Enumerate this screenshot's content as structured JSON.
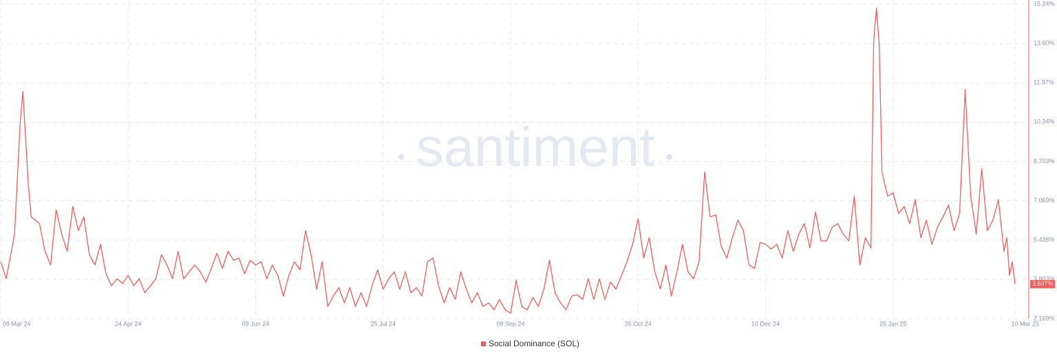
{
  "chart_data": {
    "type": "line",
    "watermark": "santiment",
    "x": [
      "09 Mar 24",
      "11 Mar 24",
      "14 Mar 24",
      "16 Mar 24",
      "17 Mar 24",
      "19 Mar 24",
      "20 Mar 24",
      "23 Mar 24",
      "25 Mar 24",
      "27 Mar 24",
      "29 Mar 24",
      "31 Mar 24",
      "02 Apr 24",
      "04 Apr 24",
      "06 Apr 24",
      "08 Apr 24",
      "10 Apr 24",
      "12 Apr 24",
      "14 Apr 24",
      "16 Apr 24",
      "18 Apr 24",
      "20 Apr 24",
      "22 Apr 24",
      "24 Apr 24",
      "26 Apr 24",
      "28 Apr 24",
      "30 Apr 24",
      "02 May 24",
      "04 May 24",
      "06 May 24",
      "08 May 24",
      "10 May 24",
      "12 May 24",
      "14 May 24",
      "16 May 24",
      "18 May 24",
      "20 May 24",
      "22 May 24",
      "24 May 24",
      "26 May 24",
      "28 May 24",
      "30 May 24",
      "01 Jun 24",
      "03 Jun 24",
      "05 Jun 24",
      "07 Jun 24",
      "09 Jun 24",
      "11 Jun 24",
      "13 Jun 24",
      "15 Jun 24",
      "17 Jun 24",
      "19 Jun 24",
      "21 Jun 24",
      "23 Jun 24",
      "25 Jun 24",
      "27 Jun 24",
      "29 Jun 24",
      "01 Jul 24",
      "03 Jul 24",
      "05 Jul 24",
      "07 Jul 24",
      "09 Jul 24",
      "11 Jul 24",
      "13 Jul 24",
      "15 Jul 24",
      "17 Jul 24",
      "19 Jul 24",
      "21 Jul 24",
      "23 Jul 24",
      "25 Jul 24",
      "27 Jul 24",
      "29 Jul 24",
      "31 Jul 24",
      "02 Aug 24",
      "04 Aug 24",
      "06 Aug 24",
      "08 Aug 24",
      "10 Aug 24",
      "12 Aug 24",
      "14 Aug 24",
      "16 Aug 24",
      "18 Aug 24",
      "20 Aug 24",
      "22 Aug 24",
      "24 Aug 24",
      "26 Aug 24",
      "28 Aug 24",
      "30 Aug 24",
      "01 Sep 24",
      "03 Sep 24",
      "05 Sep 24",
      "07 Sep 24",
      "09 Sep 24",
      "11 Sep 24",
      "13 Sep 24",
      "15 Sep 24",
      "17 Sep 24",
      "19 Sep 24",
      "21 Sep 24",
      "23 Sep 24",
      "25 Sep 24",
      "27 Sep 24",
      "29 Sep 24",
      "01 Oct 24",
      "03 Oct 24",
      "05 Oct 24",
      "07 Oct 24",
      "09 Oct 24",
      "11 Oct 24",
      "13 Oct 24",
      "15 Oct 24",
      "17 Oct 24",
      "19 Oct 24",
      "21 Oct 24",
      "23 Oct 24",
      "25 Oct 24",
      "27 Oct 24",
      "29 Oct 24",
      "31 Oct 24",
      "02 Nov 24",
      "04 Nov 24",
      "06 Nov 24",
      "08 Nov 24",
      "10 Nov 24",
      "12 Nov 24",
      "14 Nov 24",
      "16 Nov 24",
      "18 Nov 24",
      "20 Nov 24",
      "22 Nov 24",
      "24 Nov 24",
      "26 Nov 24",
      "28 Nov 24",
      "30 Nov 24",
      "02 Dec 24",
      "04 Dec 24",
      "06 Dec 24",
      "08 Dec 24",
      "10 Dec 24",
      "12 Dec 24",
      "14 Dec 24",
      "16 Dec 24",
      "18 Dec 24",
      "20 Dec 24",
      "22 Dec 24",
      "24 Dec 24",
      "26 Dec 24",
      "28 Dec 24",
      "30 Dec 24",
      "01 Jan 25",
      "03 Jan 25",
      "05 Jan 25",
      "07 Jan 25",
      "09 Jan 25",
      "11 Jan 25",
      "13 Jan 25",
      "15 Jan 25",
      "17 Jan 25",
      "18 Jan 25",
      "19 Jan 25",
      "20 Jan 25",
      "21 Jan 25",
      "23 Jan 25",
      "25 Jan 25",
      "27 Jan 25",
      "29 Jan 25",
      "31 Jan 25",
      "02 Feb 25",
      "04 Feb 25",
      "06 Feb 25",
      "08 Feb 25",
      "10 Feb 25",
      "12 Feb 25",
      "14 Feb 25",
      "16 Feb 25",
      "18 Feb 25",
      "20 Feb 25",
      "22 Feb 25",
      "24 Feb 25",
      "26 Feb 25",
      "28 Feb 25",
      "02 Mar 25",
      "04 Mar 25",
      "06 Mar 25",
      "07 Mar 25",
      "08 Mar 25",
      "09 Mar 25",
      "10 Mar 25"
    ],
    "series": [
      {
        "name": "Social Dominance (SOL)",
        "color": "#f45b5b",
        "values": [
          4.54,
          3.83,
          5.69,
          10.26,
          11.61,
          7.69,
          6.4,
          6.12,
          4.97,
          4.4,
          6.69,
          5.69,
          4.97,
          6.83,
          5.83,
          6.4,
          4.83,
          4.4,
          5.26,
          4.03,
          3.54,
          3.83,
          3.63,
          3.97,
          3.54,
          3.83,
          3.25,
          3.54,
          3.83,
          4.83,
          4.4,
          3.83,
          4.97,
          3.83,
          4.12,
          4.4,
          4.12,
          3.69,
          4.26,
          4.89,
          4.26,
          4.97,
          4.6,
          4.69,
          4.03,
          4.6,
          4.4,
          4.54,
          3.83,
          4.4,
          3.97,
          3.11,
          3.97,
          4.54,
          4.2,
          5.83,
          4.83,
          3.4,
          4.54,
          2.68,
          3.11,
          3.46,
          2.83,
          3.46,
          2.68,
          3.25,
          2.68,
          3.54,
          4.2,
          3.4,
          3.83,
          4.12,
          3.4,
          4.12,
          3.25,
          3.46,
          3.11,
          4.54,
          4.69,
          3.54,
          2.83,
          3.46,
          2.97,
          4.12,
          3.4,
          2.83,
          3.25,
          2.68,
          2.83,
          2.54,
          2.97,
          2.54,
          2.4,
          3.77,
          2.68,
          2.54,
          3.06,
          2.68,
          3.4,
          4.6,
          3.25,
          2.83,
          2.54,
          3.11,
          3.17,
          2.97,
          3.83,
          2.97,
          3.83,
          2.97,
          3.69,
          3.4,
          3.97,
          4.54,
          5.26,
          6.32,
          4.69,
          5.54,
          4.12,
          3.4,
          4.4,
          3.11,
          4.12,
          5.26,
          4.12,
          3.83,
          4.54,
          8.26,
          6.4,
          6.49,
          5.17,
          4.69,
          5.54,
          6.26,
          5.83,
          4.4,
          4.26,
          5.34,
          5.26,
          5.06,
          5.26,
          4.69,
          5.83,
          4.97,
          5.69,
          6.12,
          5.11,
          6.6,
          5.4,
          5.4,
          5.97,
          6.12,
          5.69,
          5.4,
          7.26,
          4.4,
          5.54,
          5.11,
          13.7,
          15.07,
          13.55,
          8.26,
          7.26,
          7.4,
          6.54,
          6.83,
          6.12,
          7.12,
          5.54,
          6.26,
          5.26,
          5.97,
          6.4,
          6.89,
          5.83,
          6.54,
          11.69,
          7.26,
          5.69,
          8.4,
          5.83,
          6.26,
          7.12,
          4.97,
          5.54,
          3.97,
          4.54,
          3.607
        ]
      }
    ],
    "last_value": {
      "value": 3.607,
      "label": "3.607%"
    },
    "xlim": [
      "09 Mar 24",
      "10 Mar 25"
    ],
    "xticks": [
      "09 Mar 24",
      "24 Apr 24",
      "09 Jun 24",
      "25 Jul 24",
      "09 Sep 24",
      "25 Oct 24",
      "10 Dec 24",
      "25 Jan 25",
      "10 Mar 25"
    ],
    "ylim": [
      2.169,
      15.24
    ],
    "yticks": [
      {
        "value": 2.169,
        "label": "2.169%"
      },
      {
        "value": 3.803,
        "label": "3.803%"
      },
      {
        "value": 5.436,
        "label": "5.436%"
      },
      {
        "value": 7.069,
        "label": "7.069%"
      },
      {
        "value": 8.703,
        "label": "8.703%"
      },
      {
        "value": 10.34,
        "label": "10.34%"
      },
      {
        "value": 11.97,
        "label": "11.97%"
      },
      {
        "value": 13.6,
        "label": "13.60%"
      },
      {
        "value": 15.24,
        "label": "15.24%"
      }
    ],
    "grid": true
  }
}
